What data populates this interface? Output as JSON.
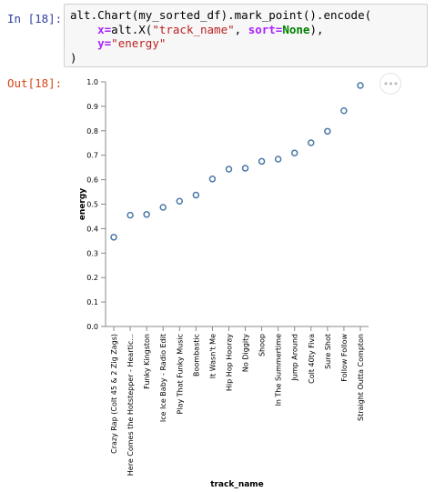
{
  "cell_in": {
    "prompt": "In [18]:",
    "code": {
      "line1": "alt.Chart(my_sorted_df).mark_point().encode(",
      "line2_indent": "    ",
      "line2_kw": "x=",
      "line2_fn": "alt.X(",
      "line2_str": "\"track_name\"",
      "line2_mid": ", ",
      "line2_kw2": "sort=",
      "line2_none": "None",
      "line2_end": "),",
      "line3_indent": "    ",
      "line3_kw": "y=",
      "line3_str": "\"energy\"",
      "line4": ")"
    }
  },
  "cell_out": {
    "prompt": "Out[18]:",
    "actions_icon": "ellipsis-icon",
    "actions_label": "•••"
  },
  "chart_data": {
    "type": "scatter",
    "xlabel": "track_name",
    "ylabel": "energy",
    "ylim": [
      0,
      1.0
    ],
    "yticks": [
      "0.0",
      "0.1",
      "0.2",
      "0.3",
      "0.4",
      "0.5",
      "0.6",
      "0.7",
      "0.8",
      "0.9",
      "1.0"
    ],
    "grid": false,
    "point_color": "#4c78a8",
    "categories": [
      "Crazy Rap (Colt 45 & 2 Zig Zags)",
      "Here Comes the Hotstepper - Heartic...",
      "Funky Kingston",
      "Ice Ice Baby - Radio Edit",
      "Play That Funky Music",
      "Boombastic",
      "It Wasn't Me",
      "Hip Hop Hooray",
      "No Diggity",
      "Shoop",
      "In The Summertime",
      "Jump Around",
      "Colt 40ty Fiva",
      "Sure Shot",
      "Follow Follow",
      "Straight Outta Compton"
    ],
    "values": [
      0.365,
      0.455,
      0.458,
      0.487,
      0.512,
      0.537,
      0.603,
      0.643,
      0.647,
      0.675,
      0.684,
      0.709,
      0.751,
      0.798,
      0.882,
      0.985
    ]
  }
}
